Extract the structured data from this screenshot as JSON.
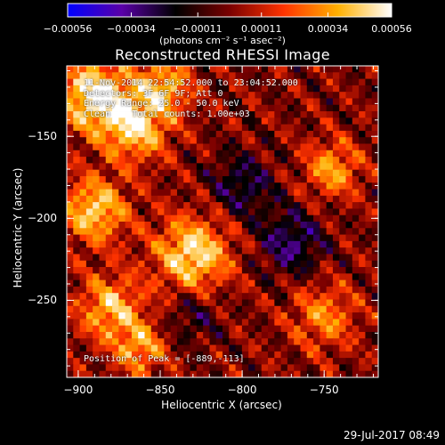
{
  "chart_data": {
    "type": "heatmap",
    "title": "Reconstructed RHESSI Image",
    "xlabel": "Heliocentric X (arcsec)",
    "ylabel": "Heliocentric Y (arcsec)",
    "xlim": [
      -907,
      -717
    ],
    "ylim": [
      -297,
      -107
    ],
    "xticks": [
      -900,
      -850,
      -800,
      -750
    ],
    "xtick_labels": [
      "−900",
      "−850",
      "−800",
      "−750"
    ],
    "yticks": [
      -150,
      -200,
      -250
    ],
    "ytick_labels": [
      "−150",
      "−200",
      "−250"
    ],
    "colorbar": {
      "min": -0.00056,
      "max": 0.00056,
      "ticks": [
        -0.00056,
        -0.00034,
        -0.00011,
        0.00011,
        0.00034,
        0.00056
      ],
      "tick_labels": [
        "−0.00056",
        "−0.00034",
        "−0.00011",
        "0.00011",
        "0.00034",
        "0.00056"
      ],
      "units": "(photons cm⁻² s⁻¹ asec⁻²)",
      "colormap": [
        "#0000ff",
        "#5a00a8",
        "#000000",
        "#7a0000",
        "#ff3300",
        "#ffb000",
        "#ffffff"
      ]
    },
    "annotations": {
      "time": "11-Nov-2014 22:54:52.000 to 23:04:52.000",
      "detectors": "Detectors: 3F 6F 9F; Att 0",
      "energy": "Energy Range: 25.0 - 50.0 keV",
      "clean": "Clean    Total counts: 1.00e+03",
      "peak": "Position of Peak = [-889,-113]"
    },
    "grid_resolution": [
      48,
      48
    ],
    "emission_sources": [
      {
        "x": -890,
        "y": -125,
        "sigma": 15,
        "amp": 0.00056
      },
      {
        "x": -865,
        "y": -145,
        "sigma": 14,
        "amp": 0.00045
      },
      {
        "x": -848,
        "y": -120,
        "sigma": 12,
        "amp": 0.0004
      },
      {
        "x": -890,
        "y": -195,
        "sigma": 14,
        "amp": 0.00045
      },
      {
        "x": -830,
        "y": -222,
        "sigma": 16,
        "amp": 0.0005
      },
      {
        "x": -880,
        "y": -255,
        "sigma": 14,
        "amp": 0.0004
      },
      {
        "x": -862,
        "y": -280,
        "sigma": 11,
        "amp": 0.00035
      },
      {
        "x": -745,
        "y": -170,
        "sigma": 12,
        "amp": 0.00035
      },
      {
        "x": -750,
        "y": -260,
        "sigma": 14,
        "amp": 0.0003
      },
      {
        "x": -800,
        "y": -180,
        "sigma": 14,
        "amp": -0.00025
      },
      {
        "x": -770,
        "y": -215,
        "sigma": 14,
        "amp": -0.0003
      },
      {
        "x": -830,
        "y": -260,
        "sigma": 12,
        "amp": -0.00018
      }
    ],
    "grid": false
  },
  "timestamp": "29-Jul-2017 08:49"
}
